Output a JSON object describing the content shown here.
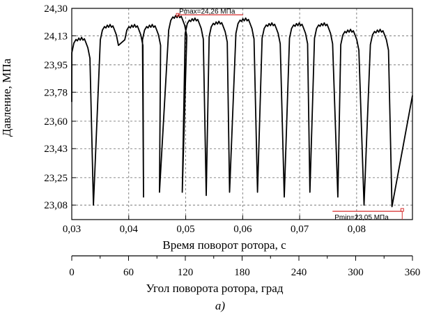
{
  "colors": {
    "series": "#000000",
    "annotation": "#d62b2b",
    "grid": "#666666",
    "background": "#ffffff"
  },
  "caption": "a)",
  "chart_data": [
    {
      "type": "line",
      "title": "",
      "xlabel": "Время поворот ротора, с",
      "ylabel": "Давление, МПа",
      "grid": true,
      "legend": "none",
      "xlim": [
        0.03,
        0.0898
      ],
      "ylim": [
        22.99,
        24.3
      ],
      "x_ticks": [
        0.03,
        0.04,
        0.05,
        0.06,
        0.07,
        0.08
      ],
      "x_tick_labels": [
        "0,03",
        "0,04",
        "0,05",
        "0,06",
        "0,07",
        "0,08"
      ],
      "y_ticks": [
        23.08,
        23.25,
        23.43,
        23.6,
        23.78,
        23.95,
        24.13,
        24.3
      ],
      "y_tick_labels": [
        "23,08",
        "23,25",
        "23,43",
        "23,60",
        "23,78",
        "23,95",
        "24,13",
        "24,30"
      ],
      "series": [
        {
          "valley_times": [
            0.0338,
            0.0426,
            0.0454,
            0.0494,
            0.0536,
            0.0577,
            0.0626,
            0.0673,
            0.0718,
            0.0767,
            0.0813,
            0.0862
          ],
          "valley_pressures": [
            23.08,
            23.13,
            23.16,
            23.16,
            23.14,
            23.16,
            23.16,
            23.13,
            23.16,
            23.13,
            23.08,
            23.07
          ],
          "peak_times": [
            0.0316,
            0.0366,
            0.0409,
            0.044,
            0.0486,
            0.0515,
            0.0557,
            0.0604,
            0.065,
            0.0698,
            0.0742,
            0.0788,
            0.084
          ],
          "peak_pressures": [
            24.12,
            24.2,
            24.2,
            24.2,
            24.26,
            24.24,
            24.22,
            24.24,
            24.21,
            24.21,
            24.21,
            24.17,
            24.17
          ],
          "x_start": 0.03,
          "y_start": 23.72,
          "x_end": 0.0898,
          "y_end": 23.76
        }
      ],
      "annotations": [
        {
          "text": "Pmax=24,26 МПа",
          "x": 0.0486,
          "y": 24.26
        },
        {
          "text": "Pmin=23,05 МПа",
          "x": 0.088,
          "y": 23.05
        }
      ]
    },
    {
      "type": "axis",
      "xlabel": "Угол поворота ротора, град",
      "xlim": [
        0,
        360
      ],
      "x_ticks": [
        0,
        60,
        120,
        180,
        240,
        300,
        360
      ],
      "x_tick_labels": [
        "0",
        "60",
        "120",
        "180",
        "240",
        "300",
        "360"
      ]
    }
  ]
}
